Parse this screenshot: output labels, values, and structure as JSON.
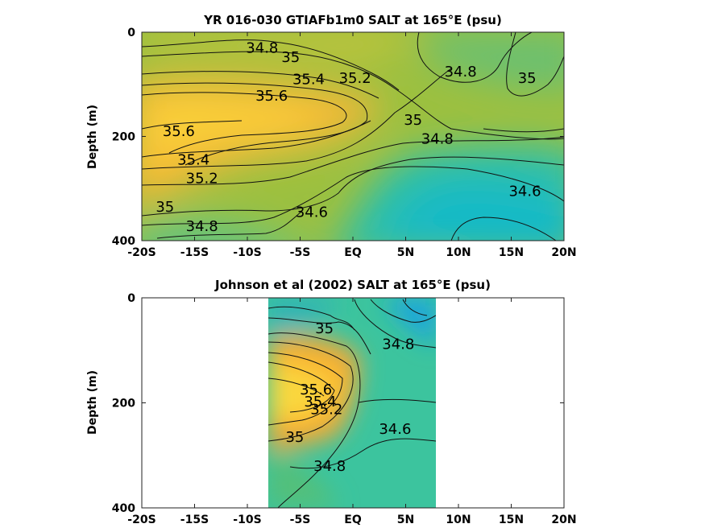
{
  "chart_data": [
    {
      "type": "heatmap",
      "title": "YR 016-030 GTIAFb1m0 SALT at 165°E (psu)",
      "xlabel": "",
      "ylabel": "Depth (m)",
      "xlim": [
        -20,
        20
      ],
      "ylim": [
        0,
        400
      ],
      "x_ticks": [
        -20,
        -15,
        -10,
        -5,
        0,
        5,
        10,
        15,
        20
      ],
      "x_tick_labels": [
        "-20S",
        "-15S",
        "-10S",
        "-5S",
        "EQ",
        "5N",
        "10N",
        "15N",
        "20N"
      ],
      "y_ticks": [
        0,
        200,
        400
      ],
      "y_tick_labels": [
        "0",
        "200",
        "400"
      ],
      "data_extent_x": [
        -20,
        20
      ],
      "contour_labels": [
        {
          "text": "34.8",
          "lat": -8.6,
          "depth": 30
        },
        {
          "text": "35",
          "lat": -5.9,
          "depth": 48
        },
        {
          "text": "35.4",
          "lat": -4.2,
          "depth": 90
        },
        {
          "text": "35.2",
          "lat": 0.2,
          "depth": 88
        },
        {
          "text": "34.8",
          "lat": 10.2,
          "depth": 76
        },
        {
          "text": "35",
          "lat": 16.5,
          "depth": 88
        },
        {
          "text": "35.6",
          "lat": -7.7,
          "depth": 122
        },
        {
          "text": "35",
          "lat": 5.7,
          "depth": 168
        },
        {
          "text": "35.6",
          "lat": -16.5,
          "depth": 190
        },
        {
          "text": "34.8",
          "lat": 8.0,
          "depth": 205
        },
        {
          "text": "35.4",
          "lat": -15.1,
          "depth": 245
        },
        {
          "text": "35.2",
          "lat": -14.3,
          "depth": 280
        },
        {
          "text": "34.6",
          "lat": 16.3,
          "depth": 305
        },
        {
          "text": "35",
          "lat": -17.8,
          "depth": 335
        },
        {
          "text": "34.6",
          "lat": -3.9,
          "depth": 345
        },
        {
          "text": "34.8",
          "lat": -14.3,
          "depth": 372
        }
      ]
    },
    {
      "type": "heatmap",
      "title": "Johnson et al (2002) SALT at 165°E (psu)",
      "xlabel": "",
      "ylabel": "Depth (m)",
      "xlim": [
        -20,
        20
      ],
      "ylim": [
        0,
        400
      ],
      "x_ticks": [
        -20,
        -15,
        -10,
        -5,
        0,
        5,
        10,
        15,
        20
      ],
      "x_tick_labels": [
        "-20S",
        "-15S",
        "-10S",
        "-5S",
        "EQ",
        "5N",
        "10N",
        "15N",
        "20N"
      ],
      "y_ticks": [
        0,
        200,
        400
      ],
      "y_tick_labels": [
        "0",
        "200",
        "400"
      ],
      "data_extent_x": [
        -8,
        8
      ],
      "contour_labels": [
        {
          "text": "35",
          "lat": -2.7,
          "depth": 58
        },
        {
          "text": "34.8",
          "lat": 4.3,
          "depth": 88
        },
        {
          "text": "35.6",
          "lat": -3.5,
          "depth": 175
        },
        {
          "text": "35.4",
          "lat": -3.1,
          "depth": 198
        },
        {
          "text": "35.2",
          "lat": -2.5,
          "depth": 212
        },
        {
          "text": "34.6",
          "lat": 4.0,
          "depth": 250
        },
        {
          "text": "35",
          "lat": -5.5,
          "depth": 265
        },
        {
          "text": "34.8",
          "lat": -2.2,
          "depth": 320
        }
      ]
    }
  ]
}
